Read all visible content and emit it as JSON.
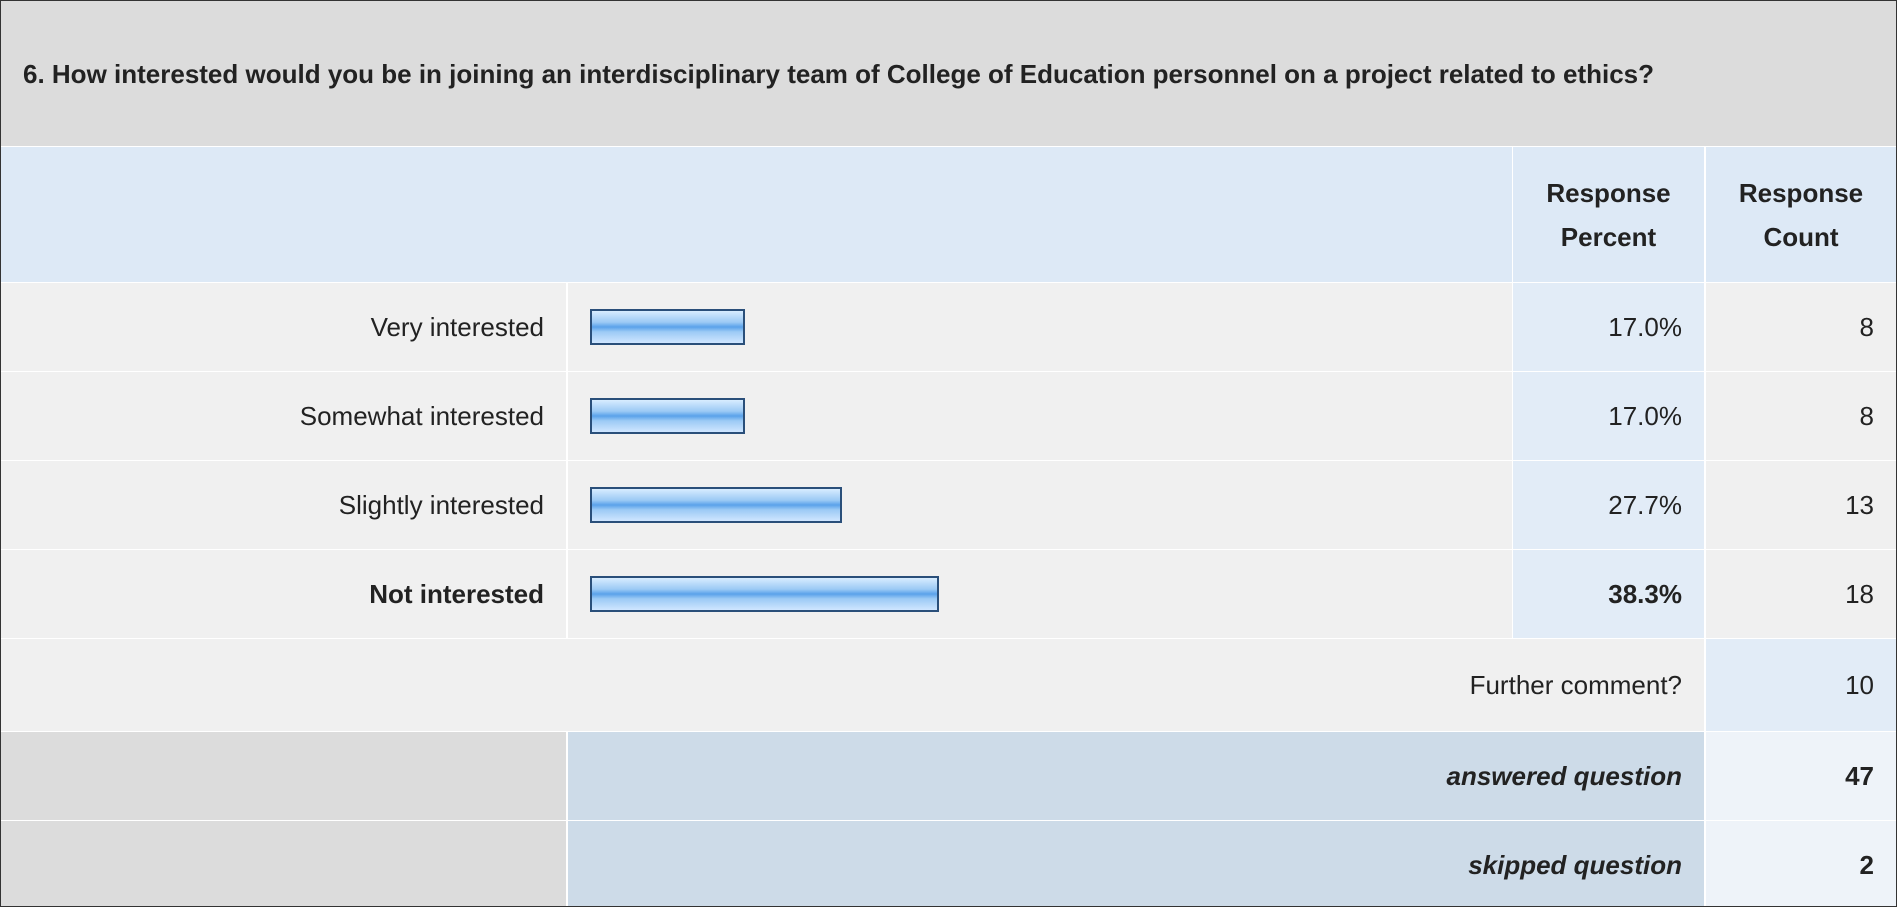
{
  "question": "6. How interested would you be in joining an interdisciplinary team of College of Education personnel on a project related to ethics?",
  "columns": {
    "percent": "Response Percent",
    "count": "Response Count"
  },
  "rows": [
    {
      "label": "Very interested",
      "percent": 17.0,
      "percent_label": "17.0%",
      "count": 8
    },
    {
      "label": "Somewhat interested",
      "percent": 17.0,
      "percent_label": "17.0%",
      "count": 8
    },
    {
      "label": "Slightly interested",
      "percent": 27.7,
      "percent_label": "27.7%",
      "count": 13
    },
    {
      "label": "Not interested",
      "percent": 38.3,
      "percent_label": "38.3%",
      "count": 18
    }
  ],
  "highlighted_row": 3,
  "comment": {
    "label": "Further comment?",
    "count": 10
  },
  "answered": {
    "label": "answered question",
    "count": 47
  },
  "skipped": {
    "label": "skipped question",
    "count": 2
  }
}
